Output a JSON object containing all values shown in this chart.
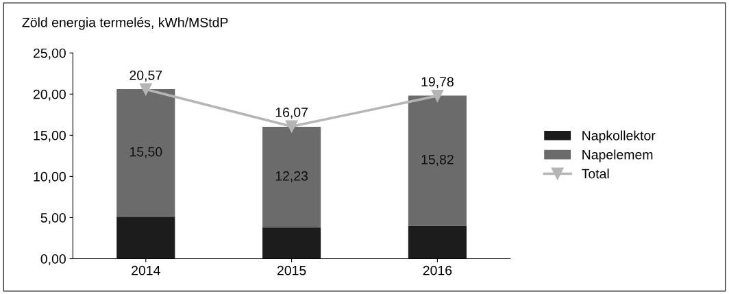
{
  "chart_data": {
    "type": "bar",
    "stacked": true,
    "title": "Zöld energia termelés, kWh/MStdP",
    "categories": [
      "2014",
      "2015",
      "2016"
    ],
    "series": [
      {
        "name": "Napkollektor",
        "color": "#1c1c1c",
        "values": [
          5.1,
          3.8,
          4.0
        ]
      },
      {
        "name": "Napelemem",
        "color": "#6b6b6b",
        "values": [
          15.5,
          12.23,
          15.82
        ],
        "value_labels": [
          "15,50",
          "12,23",
          "15,82"
        ]
      },
      {
        "name": "Total",
        "type": "line",
        "color": "#b5b5b5",
        "marker": "triangle",
        "values": [
          20.57,
          16.07,
          19.78
        ],
        "value_labels": [
          "20,57",
          "16,07",
          "19,78"
        ]
      }
    ],
    "ylim": [
      0,
      25
    ],
    "yticks": [
      {
        "value": 0,
        "label": "0,00"
      },
      {
        "value": 5,
        "label": "5,00"
      },
      {
        "value": 10,
        "label": "10,00"
      },
      {
        "value": 15,
        "label": "15,00"
      },
      {
        "value": 20,
        "label": "20,00"
      },
      {
        "value": 25,
        "label": "25,00"
      }
    ],
    "legend": "right",
    "grid": false
  }
}
